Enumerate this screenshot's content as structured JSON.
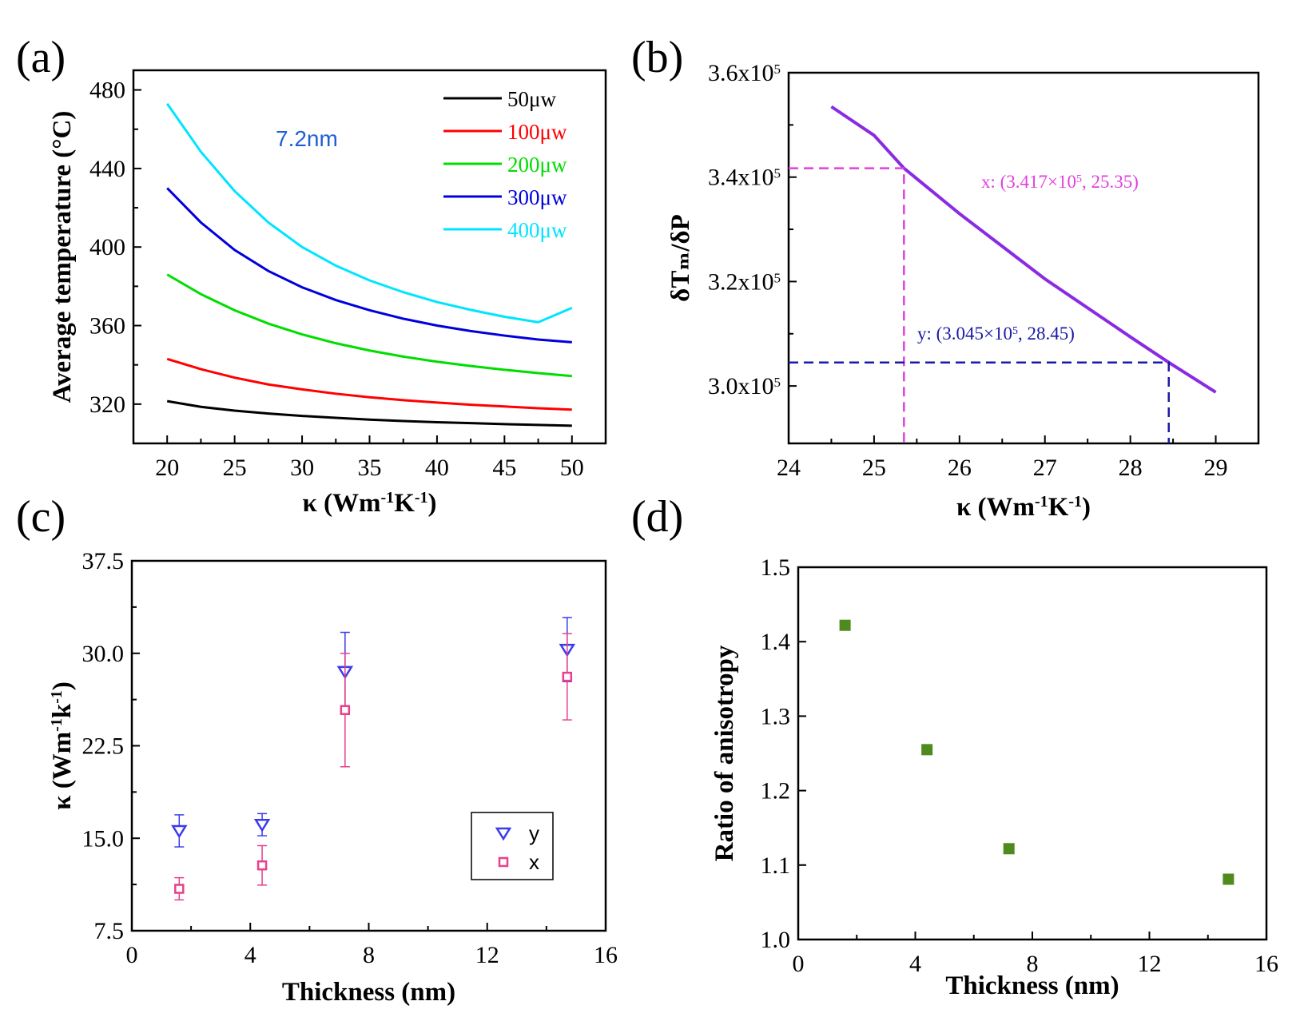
{
  "chart_data": [
    {
      "panel": "(a)",
      "type": "line",
      "ylabel": "Average temperature (°C)",
      "xlabel": "κ (Wm⁻¹K⁻¹)",
      "annotation": "7.2nm",
      "annotation_color": "#1f5fd6",
      "xlim": [
        17.5,
        52.5
      ],
      "ylim": [
        300,
        490
      ],
      "xticks": [
        "20",
        "25",
        "30",
        "35",
        "40",
        "45",
        "50"
      ],
      "yticks": [
        "320",
        "360",
        "400",
        "440",
        "480"
      ],
      "x": [
        20,
        22.5,
        25,
        27.5,
        30,
        32.5,
        35,
        37.5,
        40,
        42.5,
        45,
        47.5,
        50
      ],
      "series": [
        {
          "name": "50μw",
          "color": "#000000",
          "values": [
            321.5,
            318.6,
            316.7,
            315.2,
            314.0,
            313.0,
            312.1,
            311.4,
            310.8,
            310.3,
            309.8,
            309.4,
            309.0
          ]
        },
        {
          "name": "100μw",
          "color": "#ff0000",
          "values": [
            343,
            337.8,
            333.5,
            330.0,
            327.5,
            325.3,
            323.5,
            322.0,
            320.8,
            319.7,
            318.8,
            317.9,
            317.2
          ]
        },
        {
          "name": "200μw",
          "color": "#00dd00",
          "values": [
            386,
            376.0,
            367.8,
            361.0,
            355.5,
            351.0,
            347.3,
            344.2,
            341.6,
            339.4,
            337.5,
            335.8,
            334.3
          ]
        },
        {
          "name": "300μw",
          "color": "#0000dd",
          "values": [
            430,
            412.5,
            398.5,
            387.8,
            379.5,
            373.0,
            367.8,
            363.5,
            360.0,
            357.2,
            354.9,
            352.9,
            351.5
          ]
        },
        {
          "name": "400μw",
          "color": "#00e5ff",
          "values": [
            473,
            448.5,
            428.5,
            412.5,
            400.0,
            390.5,
            383.0,
            377.0,
            372.0,
            368.0,
            364.5,
            361.7,
            369.0
          ]
        }
      ]
    },
    {
      "panel": "(b)",
      "type": "line",
      "ylabel": "δTₘ/δP",
      "xlabel": "κ (Wm⁻¹K⁻¹)",
      "xlim": [
        24,
        29.5
      ],
      "ylim": [
        289000,
        360000
      ],
      "xticks": [
        "24",
        "25",
        "26",
        "27",
        "28",
        "29"
      ],
      "yticks": [
        "3.0x10⁵",
        "3.2x10⁵",
        "3.4x10⁵",
        "3.6x10⁵"
      ],
      "series": [
        {
          "name": "δT/δP",
          "color": "#8a2be2",
          "x": [
            24.5,
            25.0,
            25.35,
            26.0,
            27.0,
            28.0,
            28.45,
            29.0
          ],
          "values": [
            353500,
            348000,
            341700,
            333000,
            320500,
            309400,
            304500,
            298800
          ]
        }
      ],
      "markers": [
        {
          "label": "x: (3.417×10⁵, 25.35)",
          "x": 25.35,
          "y": 341700,
          "color": "#e040e0"
        },
        {
          "label": "y: (3.045×10⁵, 28.45)",
          "x": 28.45,
          "y": 304500,
          "color": "#1a1aa8"
        }
      ]
    },
    {
      "panel": "(c)",
      "type": "scatter",
      "ylabel": "κ (Wm⁻¹k⁻¹)",
      "xlabel": "Thickness (nm)",
      "xlim": [
        0,
        16
      ],
      "ylim": [
        7.5,
        37.5
      ],
      "xticks": [
        "0",
        "4",
        "8",
        "12",
        "16"
      ],
      "yticks": [
        "7.5",
        "15.0",
        "22.5",
        "30.0",
        "37.5"
      ],
      "series": [
        {
          "name": "y",
          "color": "#3a3aee",
          "marker": "triangle-down",
          "x": [
            1.6,
            4.4,
            7.2,
            14.7
          ],
          "values": [
            15.6,
            16.1,
            28.5,
            30.3
          ],
          "err": [
            1.3,
            0.9,
            3.2,
            2.6
          ]
        },
        {
          "name": "x",
          "color": "#e8408c",
          "marker": "square-open",
          "x": [
            1.6,
            4.4,
            7.2,
            14.7
          ],
          "values": [
            10.9,
            12.8,
            25.4,
            28.1
          ],
          "err": [
            0.9,
            1.6,
            4.6,
            3.5
          ]
        }
      ]
    },
    {
      "panel": "(d)",
      "type": "scatter",
      "ylabel": "Ratio of anisotropy",
      "xlabel": "Thickness (nm)",
      "xlim": [
        0,
        16
      ],
      "ylim": [
        1.0,
        1.5
      ],
      "xticks": [
        "0",
        "4",
        "8",
        "12",
        "16"
      ],
      "yticks": [
        "1.0",
        "1.1",
        "1.2",
        "1.3",
        "1.4",
        "1.5"
      ],
      "series": [
        {
          "name": "ratio",
          "color": "#4e8a1e",
          "marker": "square",
          "x": [
            1.6,
            4.4,
            7.2,
            14.7
          ],
          "values": [
            1.422,
            1.255,
            1.122,
            1.081
          ]
        }
      ]
    }
  ]
}
